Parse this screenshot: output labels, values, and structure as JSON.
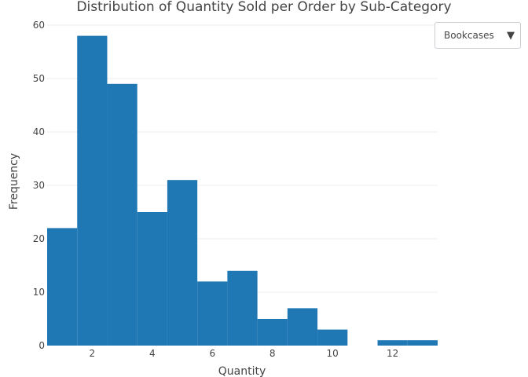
{
  "chart_data": {
    "type": "bar",
    "title": "Distribution of Quantity Sold per Order by Sub-Category",
    "xlabel": "Quantity",
    "ylabel": "Frequency",
    "bin_start": 0.5,
    "bin_width": 1,
    "categories": [
      "1",
      "2",
      "3",
      "4",
      "5",
      "6",
      "7",
      "8",
      "9",
      "10",
      "11",
      "12",
      "13"
    ],
    "values": [
      22,
      58,
      49,
      25,
      31,
      12,
      14,
      5,
      7,
      3,
      0,
      1,
      1
    ],
    "xlim": [
      0.5,
      13.5
    ],
    "ylim": [
      0,
      60
    ],
    "xticks": [
      2,
      4,
      6,
      8,
      10,
      12
    ],
    "yticks": [
      0,
      10,
      20,
      30,
      40,
      50,
      60
    ],
    "grid": "horizontal",
    "bar_color": "#1f77b4"
  },
  "dropdown": {
    "selected": "Bookcases",
    "arrow_icon": "▼"
  }
}
